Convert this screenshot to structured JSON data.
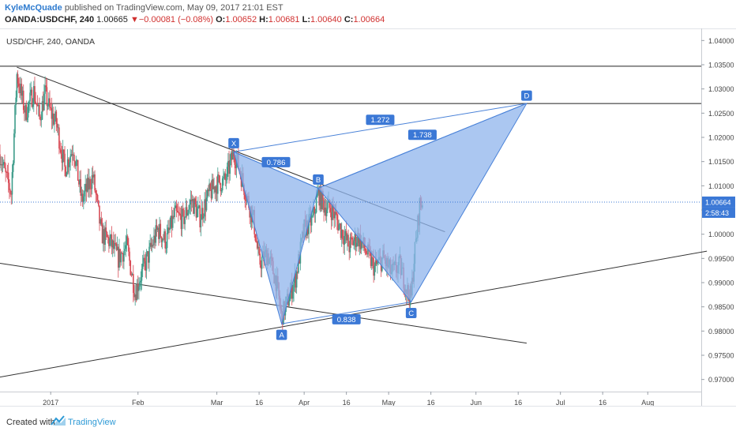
{
  "header": {
    "author": "KyleMcQuade",
    "published_text": "published on TradingView.com, May 09, 2017 21:01 EST",
    "symbol": "OANDA:USDCHF, 240",
    "last": "1.00665",
    "change_arrow": "▼",
    "change": "−0.00081 (−0.08%)",
    "o_label": "O:",
    "o_val": "1.00652",
    "h_label": "H:",
    "h_val": "1.00681",
    "l_label": "L:",
    "l_val": "1.00640",
    "c_label": "C:",
    "c_val": "1.00664"
  },
  "footer": {
    "created_with": "Created with",
    "brand": "TradingView"
  },
  "colors": {
    "pattern_fill": "#8fb4ec",
    "pattern_stroke": "#4a82d8",
    "label_bg": "#3b78d6",
    "bull": "#3d9c8a",
    "bear": "#d84a55",
    "price_line": "#3b78d6",
    "trend": "#333333"
  },
  "chart_data": {
    "type": "candlestick",
    "title": "USD/CHF, 240, OANDA",
    "y_range": [
      0.9675,
      1.0425
    ],
    "x_range": [
      "2016-12-14",
      "2017-08-20"
    ],
    "y_ticks": [
      "1.04000",
      "1.03500",
      "1.03000",
      "1.02500",
      "1.02000",
      "1.01500",
      "1.01000",
      "1.00500",
      "1.00000",
      "0.99500",
      "0.99000",
      "0.98500",
      "0.98000",
      "0.97500",
      "0.97000"
    ],
    "x_ticks": [
      {
        "date": "2017-01-01",
        "label": "2017"
      },
      {
        "date": "2017-02-01",
        "label": "Feb"
      },
      {
        "date": "2017-03-01",
        "label": "Mar"
      },
      {
        "date": "2017-03-16",
        "label": "16"
      },
      {
        "date": "2017-04-01",
        "label": "Apr"
      },
      {
        "date": "2017-04-16",
        "label": "16"
      },
      {
        "date": "2017-05-01",
        "label": "May"
      },
      {
        "date": "2017-05-16",
        "label": "16"
      },
      {
        "date": "2017-06-01",
        "label": "Jun"
      },
      {
        "date": "2017-06-16",
        "label": "16"
      },
      {
        "date": "2017-07-01",
        "label": "Jul"
      },
      {
        "date": "2017-07-16",
        "label": "16"
      },
      {
        "date": "2017-08-01",
        "label": "Aug"
      }
    ],
    "current_price": "1.00664",
    "countdown": "2:58:43",
    "price_path": [
      [
        "2016-12-14",
        1.0165
      ],
      [
        "2016-12-16",
        1.012
      ],
      [
        "2016-12-18",
        1.0085
      ],
      [
        "2016-12-20",
        1.033
      ],
      [
        "2016-12-23",
        1.025
      ],
      [
        "2016-12-26",
        1.0295
      ],
      [
        "2016-12-28",
        1.024
      ],
      [
        "2016-12-30",
        1.029
      ],
      [
        "2017-01-01",
        1.025
      ],
      [
        "2017-01-03",
        1.023
      ],
      [
        "2017-01-06",
        1.0135
      ],
      [
        "2017-01-09",
        1.018
      ],
      [
        "2017-01-12",
        1.007
      ],
      [
        "2017-01-16",
        1.012
      ],
      [
        "2017-01-19",
        1.0
      ],
      [
        "2017-01-22",
        0.9985
      ],
      [
        "2017-01-25",
        0.995
      ],
      [
        "2017-01-28",
        0.9975
      ],
      [
        "2017-01-31",
        0.988
      ],
      [
        "2017-02-02",
        0.9915
      ],
      [
        "2017-02-05",
        0.996
      ],
      [
        "2017-02-08",
        1.001
      ],
      [
        "2017-02-11",
        0.9985
      ],
      [
        "2017-02-14",
        1.004
      ],
      [
        "2017-02-17",
        1.003
      ],
      [
        "2017-02-20",
        1.007
      ],
      [
        "2017-02-23",
        1.0035
      ],
      [
        "2017-02-26",
        1.008
      ],
      [
        "2017-03-01",
        1.0105
      ],
      [
        "2017-03-04",
        1.011
      ],
      [
        "2017-03-07",
        1.017
      ],
      [
        "2017-03-09",
        1.0135
      ],
      [
        "2017-03-11",
        1.009
      ],
      [
        "2017-03-14",
        1.003
      ],
      [
        "2017-03-16",
        0.994
      ],
      [
        "2017-03-19",
        0.996
      ],
      [
        "2017-03-22",
        0.9905
      ],
      [
        "2017-03-24",
        0.983
      ],
      [
        "2017-03-26",
        0.986
      ],
      [
        "2017-03-29",
        0.991
      ],
      [
        "2017-04-01",
        1.001
      ],
      [
        "2017-04-04",
        1.003
      ],
      [
        "2017-04-06",
        1.0085
      ],
      [
        "2017-04-08",
        1.006
      ],
      [
        "2017-04-11",
        1.005
      ],
      [
        "2017-04-14",
        1.001
      ],
      [
        "2017-04-17",
        0.9975
      ],
      [
        "2017-04-20",
        0.9995
      ],
      [
        "2017-04-23",
        0.9965
      ],
      [
        "2017-04-26",
        0.993
      ],
      [
        "2017-04-29",
        0.995
      ],
      [
        "2017-05-02",
        0.992
      ],
      [
        "2017-05-05",
        0.9935
      ],
      [
        "2017-05-08",
        0.9875
      ],
      [
        "2017-05-09",
        0.987
      ],
      [
        "2017-05-10",
        0.995
      ],
      [
        "2017-05-11",
        1.0
      ],
      [
        "2017-05-12",
        1.006
      ],
      [
        "2017-05-13",
        1.00664
      ]
    ],
    "harmonic_pattern": {
      "points": [
        {
          "label": "X",
          "date": "2017-03-07",
          "price": 1.017
        },
        {
          "label": "A",
          "date": "2017-03-24",
          "price": 0.9815
        },
        {
          "label": "B",
          "date": "2017-04-06",
          "price": 1.0095
        },
        {
          "label": "C",
          "date": "2017-05-09",
          "price": 0.986
        },
        {
          "label": "D",
          "date": "2017-06-19",
          "price": 1.027
        }
      ],
      "ratios": [
        {
          "label": "0.786",
          "between": [
            "X",
            "B"
          ]
        },
        {
          "label": "0.838",
          "between": [
            "A",
            "C"
          ]
        },
        {
          "label": "1.738",
          "between": [
            "B",
            "D"
          ]
        },
        {
          "label": "1.272",
          "between": [
            "X",
            "D"
          ]
        }
      ]
    },
    "horizontal_lines": [
      1.0347,
      1.027
    ],
    "trend_lines": [
      {
        "from": [
          "2016-12-20",
          1.0345
        ],
        "to": [
          "2017-05-21",
          1.0005
        ]
      },
      {
        "from": [
          "2016-12-14",
          0.994
        ],
        "to": [
          "2017-06-19",
          0.9775
        ]
      },
      {
        "from": [
          "2016-12-14",
          0.9705
        ],
        "to": [
          "2017-08-22",
          0.9965
        ]
      }
    ]
  }
}
